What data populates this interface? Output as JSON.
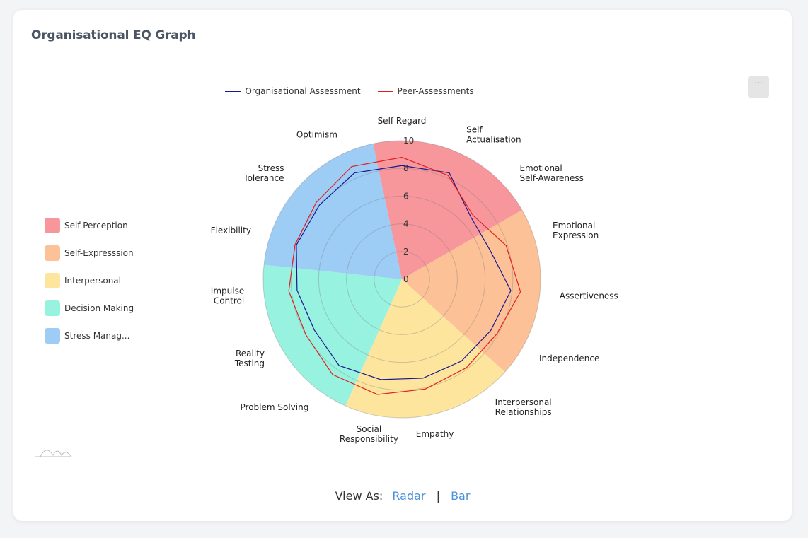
{
  "card": {
    "title": "Organisational EQ Graph",
    "menu_label": "···"
  },
  "legend_top": [
    {
      "label": "Organisational Assessment",
      "color": "#1a1a8c"
    },
    {
      "label": "Peer-Assessments",
      "color": "#e02020"
    }
  ],
  "legend_side": [
    {
      "label": "Self-Perception",
      "color": "#f7969b"
    },
    {
      "label": "Self-Expresssion",
      "color": "#fcc197"
    },
    {
      "label": "Interpersonal",
      "color": "#fde59e"
    },
    {
      "label": "Decision Making",
      "color": "#98f2e0"
    },
    {
      "label": "Stress Manag...",
      "color": "#9dccf5"
    }
  ],
  "view_as": {
    "label": "View As:",
    "radar": "Radar",
    "separator": "|",
    "bar": "Bar"
  },
  "chart_data": {
    "type": "radar",
    "rlim": [
      0,
      10
    ],
    "r_ticks": [
      "0",
      "2",
      "4",
      "6",
      "8",
      "10"
    ],
    "axes": [
      {
        "label": [
          "Self Regard"
        ],
        "group": 0
      },
      {
        "label": [
          "Self",
          "Actualisation"
        ],
        "group": 0
      },
      {
        "label": [
          "Emotional",
          "Self-Awareness"
        ],
        "group": 0
      },
      {
        "label": [
          "Emotional",
          "Expression"
        ],
        "group": 1
      },
      {
        "label": [
          "Assertiveness"
        ],
        "group": 1
      },
      {
        "label": [
          "Independence"
        ],
        "group": 1
      },
      {
        "label": [
          "Interpersonal",
          "Relationships"
        ],
        "group": 2
      },
      {
        "label": [
          "Empathy"
        ],
        "group": 2
      },
      {
        "label": [
          "Social",
          "Responsibility"
        ],
        "group": 2
      },
      {
        "label": [
          "Problem Solving"
        ],
        "group": 3
      },
      {
        "label": [
          "Reality",
          "Testing"
        ],
        "group": 3
      },
      {
        "label": [
          "Impulse",
          "Control"
        ],
        "group": 3
      },
      {
        "label": [
          "Flexibility"
        ],
        "group": 4
      },
      {
        "label": [
          "Stress",
          "Tolerance"
        ],
        "group": 4
      },
      {
        "label": [
          "Optimism"
        ],
        "group": 4
      }
    ],
    "series": [
      {
        "name": "Organisational Assessment",
        "color": "#1a1a8c",
        "values": [
          8.2,
          8.4,
          6.7,
          6.7,
          7.9,
          7.4,
          7.3,
          7.3,
          7.4,
          7.7,
          7.3,
          7.6,
          8.0,
          8.0,
          8.4
        ]
      },
      {
        "name": "Peer-Assessments",
        "color": "#e02020",
        "values": [
          8.8,
          8.2,
          6.9,
          7.9,
          8.6,
          7.9,
          7.9,
          8.1,
          8.5,
          8.5,
          8.0,
          8.2,
          8.1,
          8.3,
          8.9
        ]
      }
    ]
  }
}
